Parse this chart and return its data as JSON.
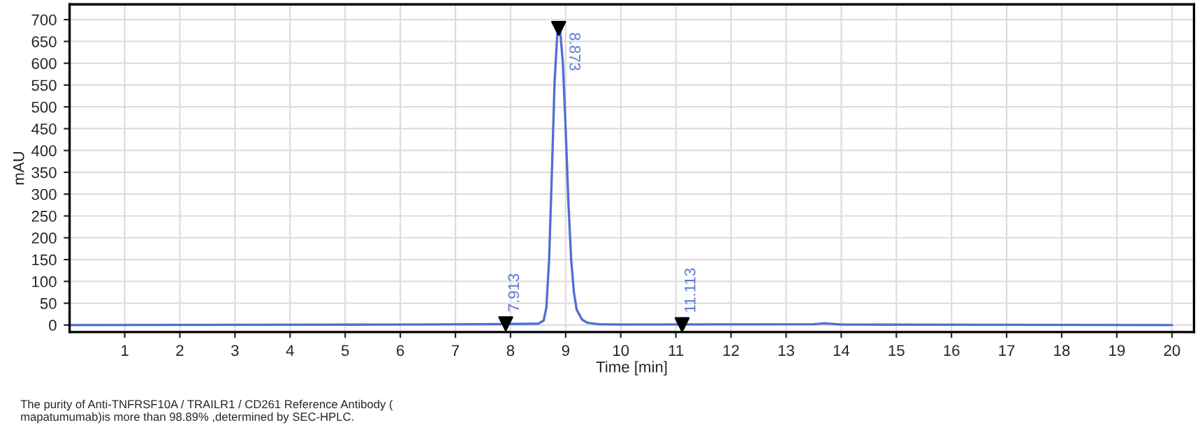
{
  "chart_data": {
    "type": "line",
    "xlabel": "Time [min]",
    "ylabel": "mAU",
    "xlim": [
      0,
      20.4
    ],
    "ylim": [
      -16,
      735
    ],
    "xticks": [
      1,
      2,
      3,
      4,
      5,
      6,
      7,
      8,
      9,
      10,
      11,
      12,
      13,
      14,
      15,
      16,
      17,
      18,
      19,
      20
    ],
    "yticks": [
      0,
      50,
      100,
      150,
      200,
      250,
      300,
      350,
      400,
      450,
      500,
      550,
      600,
      650,
      700
    ],
    "grid": true,
    "legend": false,
    "marker": "none",
    "line_style": "solid",
    "series": [
      {
        "color": "#4f6fd6",
        "x": [
          0,
          6,
          7.5,
          8.5,
          8.6,
          8.65,
          8.7,
          8.75,
          8.8,
          8.85,
          8.873,
          8.9,
          8.95,
          9.0,
          9.05,
          9.1,
          9.15,
          9.2,
          9.3,
          9.4,
          9.6,
          10,
          13.5,
          13.7,
          14,
          20
        ],
        "values": [
          0,
          1,
          2,
          3,
          10,
          40,
          150,
          350,
          560,
          670,
          680,
          675,
          600,
          450,
          280,
          150,
          75,
          35,
          12,
          5,
          2,
          1,
          2,
          4,
          1,
          0
        ]
      }
    ],
    "annotations": [
      {
        "text": "7.913",
        "x": 7.913,
        "y": 3
      },
      {
        "text": "8.873",
        "x": 8.873,
        "y": 680
      },
      {
        "text": "11.113",
        "x": 11.113,
        "y": 1
      },
      "The purity of Anti-TNFRSF10A / TRAILR1 / CD261 Reference Antibody (\nmapatumumab)is more than 98.89% ,determined by SEC-HPLC."
    ]
  }
}
